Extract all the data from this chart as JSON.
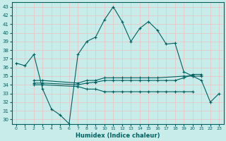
{
  "xlabel": "Humidex (Indice chaleur)",
  "background_color": "#c8ece9",
  "grid_color": "#e8c8c8",
  "line_color": "#006060",
  "xlim": [
    -0.5,
    23.5
  ],
  "ylim": [
    29.5,
    43.5
  ],
  "yticks": [
    30,
    31,
    32,
    33,
    34,
    35,
    36,
    37,
    38,
    39,
    40,
    41,
    42,
    43
  ],
  "xticks": [
    0,
    1,
    2,
    3,
    4,
    5,
    6,
    7,
    8,
    9,
    10,
    11,
    12,
    13,
    14,
    15,
    16,
    17,
    18,
    19,
    20,
    21,
    22,
    23
  ],
  "series": [
    {
      "x": [
        0,
        1,
        2,
        3,
        4,
        5,
        6,
        7,
        8,
        9,
        10,
        11,
        12,
        13,
        14,
        15,
        16,
        17,
        18,
        19,
        20,
        21,
        22,
        23
      ],
      "y": [
        36.5,
        36.2,
        37.5,
        33.5,
        31.2,
        30.5,
        29.5,
        37.5,
        39.0,
        39.5,
        41.5,
        43.0,
        41.3,
        39.0,
        40.5,
        41.3,
        40.3,
        38.7,
        38.8,
        35.5,
        35.0,
        34.5,
        32.0,
        33.0
      ],
      "connected": true
    },
    {
      "x": [
        2,
        3,
        7,
        8,
        9,
        10,
        11,
        12,
        13,
        14,
        15,
        16,
        19,
        20,
        21
      ],
      "y": [
        34.5,
        34.5,
        34.2,
        34.5,
        34.5,
        34.8,
        34.8,
        34.8,
        34.8,
        34.8,
        34.8,
        34.8,
        35.0,
        35.0,
        35.0
      ],
      "connected": true
    },
    {
      "x": [
        2,
        3,
        7,
        8,
        9,
        10,
        11,
        12,
        13,
        14,
        15,
        16,
        17,
        18,
        19,
        20
      ],
      "y": [
        34.0,
        34.0,
        33.8,
        33.5,
        33.5,
        33.2,
        33.2,
        33.2,
        33.2,
        33.2,
        33.2,
        33.2,
        33.2,
        33.2,
        33.2,
        33.2
      ],
      "connected": true
    },
    {
      "x": [
        2,
        3,
        7,
        8,
        9,
        10,
        11,
        12,
        13,
        14,
        15,
        16,
        17,
        18,
        19,
        20,
        21
      ],
      "y": [
        34.2,
        34.2,
        34.0,
        34.2,
        34.3,
        34.5,
        34.5,
        34.5,
        34.5,
        34.5,
        34.5,
        34.5,
        34.5,
        34.5,
        34.8,
        35.2,
        35.2
      ],
      "connected": true
    }
  ]
}
